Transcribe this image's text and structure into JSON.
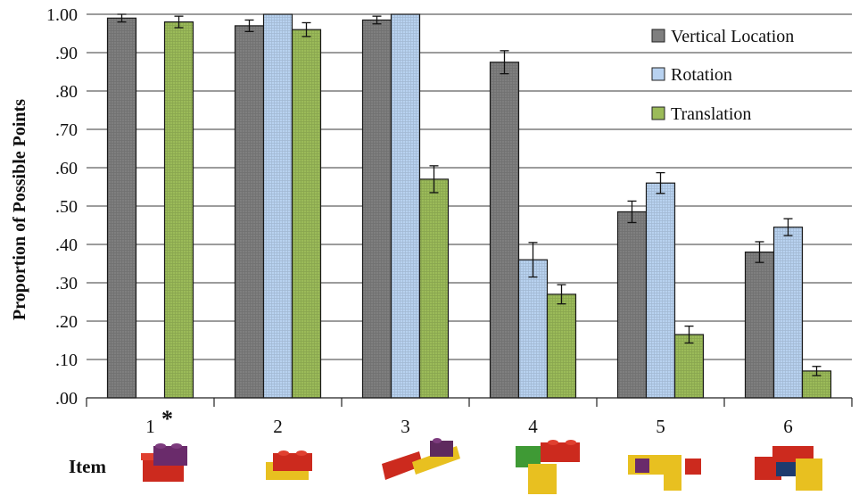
{
  "chart_data": {
    "type": "bar",
    "ylabel": "Proportion of Possible Points",
    "xlabel": "Item",
    "ylim": [
      0,
      1
    ],
    "yticks": [
      0,
      0.1,
      0.2,
      0.3,
      0.4,
      0.5,
      0.6,
      0.7,
      0.8,
      0.9,
      1.0
    ],
    "ytick_labels": [
      ".00",
      ".10",
      ".20",
      ".30",
      ".40",
      ".50",
      ".60",
      ".70",
      ".80",
      ".90",
      "1.00"
    ],
    "grid": "horizontal",
    "legend_position": "top-right",
    "categories": [
      "1",
      "2",
      "3",
      "4",
      "5",
      "6"
    ],
    "category_annotations": [
      "*",
      "",
      "",
      "",
      "",
      ""
    ],
    "series": [
      {
        "name": "Vertical Location",
        "color": "#7f7f7f",
        "values": [
          0.99,
          0.97,
          0.985,
          0.875,
          0.485,
          0.38
        ],
        "errors": [
          0.01,
          0.015,
          0.01,
          0.03,
          0.028,
          0.027
        ]
      },
      {
        "name": "Rotation",
        "color": "#b8d2f0",
        "values": [
          null,
          1.0,
          1.0,
          0.36,
          0.56,
          0.445
        ],
        "errors": [
          null,
          0.0,
          0.0,
          0.045,
          0.027,
          0.022
        ]
      },
      {
        "name": "Translation",
        "color": "#9bbb59",
        "values": [
          0.98,
          0.96,
          0.57,
          0.27,
          0.165,
          0.07
        ],
        "errors": [
          0.015,
          0.018,
          0.035,
          0.025,
          0.022,
          0.012
        ]
      }
    ],
    "item_images": [
      "lego-item-1-picture",
      "lego-item-2-picture",
      "lego-item-3-picture",
      "lego-item-4-picture",
      "lego-item-5-picture",
      "lego-item-6-picture"
    ]
  }
}
